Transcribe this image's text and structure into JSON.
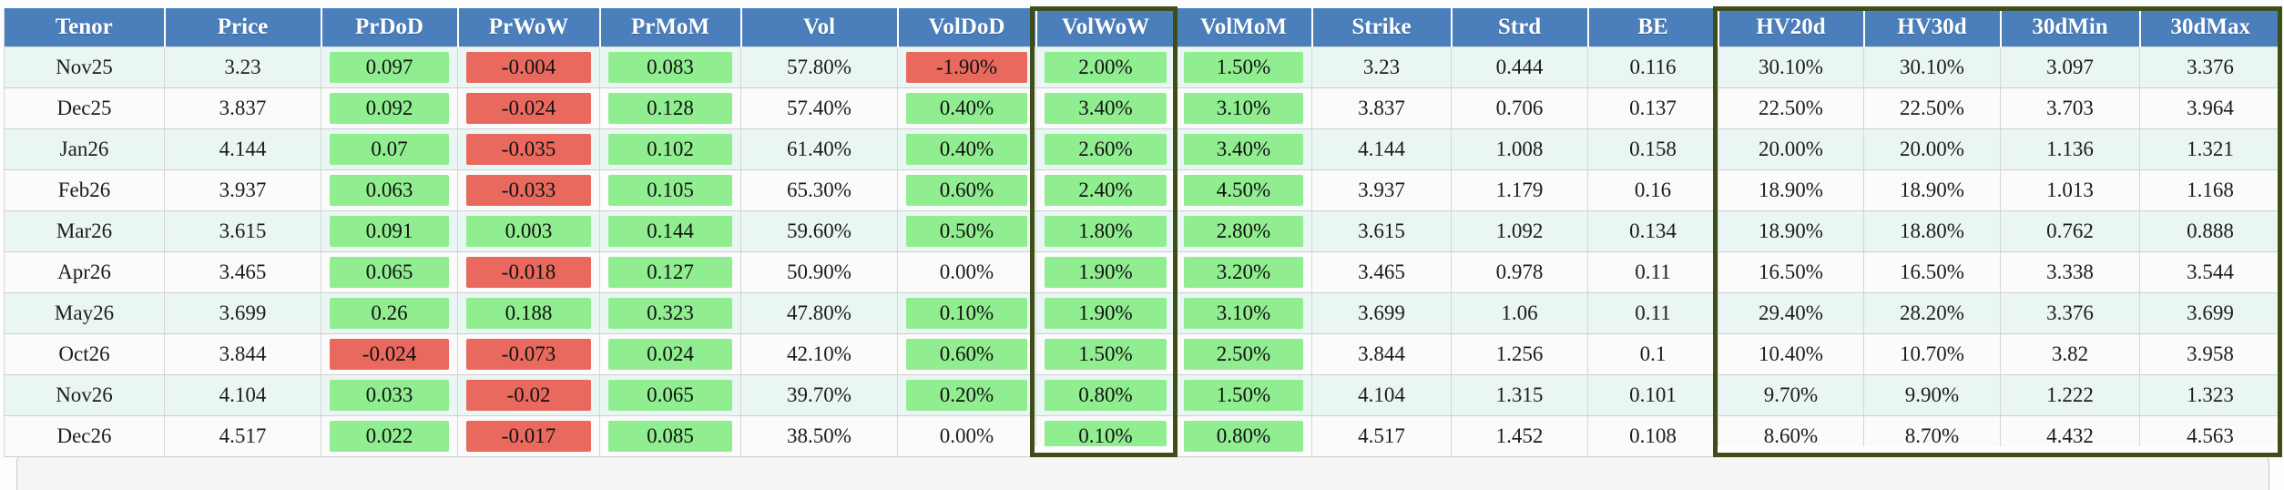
{
  "colors": {
    "header_bg": "#4a7fbc",
    "header_text": "#ffffff",
    "positive_bg": "#90ee90",
    "negative_bg": "#e9695f",
    "row_stripe_mint": "#e9f6f4",
    "row_stripe_white": "#fbfbfb",
    "highlight_border": "#3f4e18"
  },
  "table": {
    "columns": [
      {
        "key": "tenor",
        "label": "Tenor",
        "type": "plain"
      },
      {
        "key": "price",
        "label": "Price",
        "type": "plain"
      },
      {
        "key": "prdod",
        "label": "PrDoD",
        "type": "change"
      },
      {
        "key": "prwow",
        "label": "PrWoW",
        "type": "change"
      },
      {
        "key": "prmom",
        "label": "PrMoM",
        "type": "change"
      },
      {
        "key": "vol",
        "label": "Vol",
        "type": "plain"
      },
      {
        "key": "voldod",
        "label": "VolDoD",
        "type": "change"
      },
      {
        "key": "volwow",
        "label": "VolWoW",
        "type": "change"
      },
      {
        "key": "volmom",
        "label": "VolMoM",
        "type": "change"
      },
      {
        "key": "strike",
        "label": "Strike",
        "type": "plain"
      },
      {
        "key": "strd",
        "label": "Strd",
        "type": "plain"
      },
      {
        "key": "be",
        "label": "BE",
        "type": "plain"
      },
      {
        "key": "hv20d",
        "label": "HV20d",
        "type": "plain"
      },
      {
        "key": "hv30d",
        "label": "HV30d",
        "type": "plain"
      },
      {
        "key": "min30d",
        "label": "30dMin",
        "type": "plain"
      },
      {
        "key": "max30d",
        "label": "30dMax",
        "type": "plain"
      }
    ],
    "rows": [
      {
        "tenor": "Nov25",
        "price": "3.23",
        "prdod": {
          "text": "0.097",
          "state": "pos"
        },
        "prwow": {
          "text": "-0.004",
          "state": "neg"
        },
        "prmom": {
          "text": "0.083",
          "state": "pos"
        },
        "vol": "57.80%",
        "voldod": {
          "text": "-1.90%",
          "state": "neg"
        },
        "volwow": {
          "text": "2.00%",
          "state": "pos"
        },
        "volmom": {
          "text": "1.50%",
          "state": "pos"
        },
        "strike": "3.23",
        "strd": "0.444",
        "be": "0.116",
        "hv20d": "30.10%",
        "hv30d": "30.10%",
        "min30d": "3.097",
        "max30d": "3.376"
      },
      {
        "tenor": "Dec25",
        "price": "3.837",
        "prdod": {
          "text": "0.092",
          "state": "pos"
        },
        "prwow": {
          "text": "-0.024",
          "state": "neg"
        },
        "prmom": {
          "text": "0.128",
          "state": "pos"
        },
        "vol": "57.40%",
        "voldod": {
          "text": "0.40%",
          "state": "pos"
        },
        "volwow": {
          "text": "3.40%",
          "state": "pos"
        },
        "volmom": {
          "text": "3.10%",
          "state": "pos"
        },
        "strike": "3.837",
        "strd": "0.706",
        "be": "0.137",
        "hv20d": "22.50%",
        "hv30d": "22.50%",
        "min30d": "3.703",
        "max30d": "3.964"
      },
      {
        "tenor": "Jan26",
        "price": "4.144",
        "prdod": {
          "text": "0.07",
          "state": "pos"
        },
        "prwow": {
          "text": "-0.035",
          "state": "neg"
        },
        "prmom": {
          "text": "0.102",
          "state": "pos"
        },
        "vol": "61.40%",
        "voldod": {
          "text": "0.40%",
          "state": "pos"
        },
        "volwow": {
          "text": "2.60%",
          "state": "pos"
        },
        "volmom": {
          "text": "3.40%",
          "state": "pos"
        },
        "strike": "4.144",
        "strd": "1.008",
        "be": "0.158",
        "hv20d": "20.00%",
        "hv30d": "20.00%",
        "min30d": "1.136",
        "max30d": "1.321"
      },
      {
        "tenor": "Feb26",
        "price": "3.937",
        "prdod": {
          "text": "0.063",
          "state": "pos"
        },
        "prwow": {
          "text": "-0.033",
          "state": "neg"
        },
        "prmom": {
          "text": "0.105",
          "state": "pos"
        },
        "vol": "65.30%",
        "voldod": {
          "text": "0.60%",
          "state": "pos"
        },
        "volwow": {
          "text": "2.40%",
          "state": "pos"
        },
        "volmom": {
          "text": "4.50%",
          "state": "pos"
        },
        "strike": "3.937",
        "strd": "1.179",
        "be": "0.16",
        "hv20d": "18.90%",
        "hv30d": "18.90%",
        "min30d": "1.013",
        "max30d": "1.168"
      },
      {
        "tenor": "Mar26",
        "price": "3.615",
        "prdod": {
          "text": "0.091",
          "state": "pos"
        },
        "prwow": {
          "text": "0.003",
          "state": "pos"
        },
        "prmom": {
          "text": "0.144",
          "state": "pos"
        },
        "vol": "59.60%",
        "voldod": {
          "text": "0.50%",
          "state": "pos"
        },
        "volwow": {
          "text": "1.80%",
          "state": "pos"
        },
        "volmom": {
          "text": "2.80%",
          "state": "pos"
        },
        "strike": "3.615",
        "strd": "1.092",
        "be": "0.134",
        "hv20d": "18.90%",
        "hv30d": "18.80%",
        "min30d": "0.762",
        "max30d": "0.888"
      },
      {
        "tenor": "Apr26",
        "price": "3.465",
        "prdod": {
          "text": "0.065",
          "state": "pos"
        },
        "prwow": {
          "text": "-0.018",
          "state": "neg"
        },
        "prmom": {
          "text": "0.127",
          "state": "pos"
        },
        "vol": "50.90%",
        "voldod": {
          "text": "0.00%",
          "state": "flat"
        },
        "volwow": {
          "text": "1.90%",
          "state": "pos"
        },
        "volmom": {
          "text": "3.20%",
          "state": "pos"
        },
        "strike": "3.465",
        "strd": "0.978",
        "be": "0.11",
        "hv20d": "16.50%",
        "hv30d": "16.50%",
        "min30d": "3.338",
        "max30d": "3.544"
      },
      {
        "tenor": "May26",
        "price": "3.699",
        "prdod": {
          "text": "0.26",
          "state": "pos"
        },
        "prwow": {
          "text": "0.188",
          "state": "pos"
        },
        "prmom": {
          "text": "0.323",
          "state": "pos"
        },
        "vol": "47.80%",
        "voldod": {
          "text": "0.10%",
          "state": "pos"
        },
        "volwow": {
          "text": "1.90%",
          "state": "pos"
        },
        "volmom": {
          "text": "3.10%",
          "state": "pos"
        },
        "strike": "3.699",
        "strd": "1.06",
        "be": "0.11",
        "hv20d": "29.40%",
        "hv30d": "28.20%",
        "min30d": "3.376",
        "max30d": "3.699"
      },
      {
        "tenor": "Oct26",
        "price": "3.844",
        "prdod": {
          "text": "-0.024",
          "state": "neg"
        },
        "prwow": {
          "text": "-0.073",
          "state": "neg"
        },
        "prmom": {
          "text": "0.024",
          "state": "pos"
        },
        "vol": "42.10%",
        "voldod": {
          "text": "0.60%",
          "state": "pos"
        },
        "volwow": {
          "text": "1.50%",
          "state": "pos"
        },
        "volmom": {
          "text": "2.50%",
          "state": "pos"
        },
        "strike": "3.844",
        "strd": "1.256",
        "be": "0.1",
        "hv20d": "10.40%",
        "hv30d": "10.70%",
        "min30d": "3.82",
        "max30d": "3.958"
      },
      {
        "tenor": "Nov26",
        "price": "4.104",
        "prdod": {
          "text": "0.033",
          "state": "pos"
        },
        "prwow": {
          "text": "-0.02",
          "state": "neg"
        },
        "prmom": {
          "text": "0.065",
          "state": "pos"
        },
        "vol": "39.70%",
        "voldod": {
          "text": "0.20%",
          "state": "pos"
        },
        "volwow": {
          "text": "0.80%",
          "state": "pos"
        },
        "volmom": {
          "text": "1.50%",
          "state": "pos"
        },
        "strike": "4.104",
        "strd": "1.315",
        "be": "0.101",
        "hv20d": "9.70%",
        "hv30d": "9.90%",
        "min30d": "1.222",
        "max30d": "1.323"
      },
      {
        "tenor": "Dec26",
        "price": "4.517",
        "prdod": {
          "text": "0.022",
          "state": "pos"
        },
        "prwow": {
          "text": "-0.017",
          "state": "neg"
        },
        "prmom": {
          "text": "0.085",
          "state": "pos"
        },
        "vol": "38.50%",
        "voldod": {
          "text": "0.00%",
          "state": "flat"
        },
        "volwow": {
          "text": "0.10%",
          "state": "pos"
        },
        "volmom": {
          "text": "0.80%",
          "state": "pos"
        },
        "strike": "4.517",
        "strd": "1.452",
        "be": "0.108",
        "hv20d": "8.60%",
        "hv30d": "8.70%",
        "min30d": "4.432",
        "max30d": "4.563"
      }
    ]
  },
  "highlights": [
    {
      "id": "hl-volwow",
      "column": "VolWoW"
    },
    {
      "id": "hl-hvgroup",
      "columns": [
        "HV20d",
        "HV30d",
        "30dMin",
        "30dMax"
      ]
    }
  ]
}
